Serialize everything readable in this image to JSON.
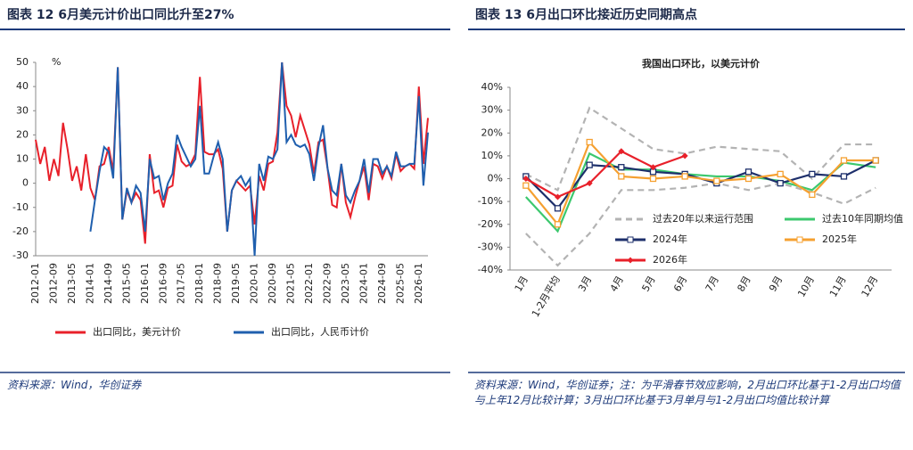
{
  "chart_data": [
    {
      "type": "line",
      "title": "图表 12 6月美元计价出口同比升至27%",
      "unit": "%",
      "source": "资料来源：Wind，华创证券",
      "categories": [
        "2012-01",
        null,
        null,
        null,
        "2012-09",
        null,
        null,
        null,
        "2013-05",
        null,
        null,
        null,
        "2014-01",
        null,
        null,
        null,
        "2014-09",
        null,
        null,
        null,
        "2015-05",
        null,
        null,
        null,
        "2016-01",
        null,
        null,
        null,
        "2016-09",
        null,
        null,
        null,
        "2017-05",
        null,
        null,
        null,
        "2018-01",
        null,
        null,
        null,
        "2018-09",
        null,
        null,
        null,
        "2019-05",
        null,
        null,
        null,
        "2020-01",
        null,
        null,
        null,
        "2020-09",
        null,
        null,
        null,
        "2021-05",
        null,
        null,
        null,
        "2022-01",
        null,
        null,
        null,
        "2022-09",
        null,
        null,
        null,
        "2023-05",
        null,
        null,
        null,
        "2024-01",
        null,
        null,
        null,
        "2024-09",
        null,
        null,
        null,
        "2025-05",
        null,
        null,
        null,
        "2026-01",
        null,
        null
      ],
      "ylim": [
        -30,
        50
      ],
      "yticks": [
        -30,
        -20,
        -10,
        0,
        10,
        20,
        30,
        40,
        50
      ],
      "series": [
        {
          "name": "出口同比，美元计价",
          "color": "#e8202a",
          "values": [
            18,
            8,
            15,
            1,
            10,
            3,
            25,
            14,
            1,
            7,
            -3,
            12,
            -2,
            -7,
            7,
            8,
            15,
            5,
            48,
            -15,
            -3,
            -8,
            -4,
            -7,
            -25,
            12,
            -4,
            -3,
            -10,
            -2,
            -1,
            16,
            9,
            7,
            8,
            12,
            44,
            13,
            12,
            12,
            14,
            6,
            -20,
            -3,
            1,
            -1,
            -3,
            -1,
            -17,
            3,
            -3,
            8,
            9,
            21,
            50,
            32,
            28,
            19,
            28,
            22,
            16,
            4,
            17,
            18,
            6,
            -9,
            -10,
            8,
            -8,
            -14,
            -6,
            1,
            7,
            -7,
            8,
            7,
            2,
            7,
            2,
            12,
            5,
            7,
            8,
            6,
            40,
            8,
            27
          ]
        },
        {
          "name": "出口同比，人民币计价",
          "color": "#1f5fae",
          "values": [
            null,
            null,
            null,
            null,
            null,
            null,
            null,
            null,
            null,
            null,
            null,
            null,
            -20,
            -7,
            5,
            15,
            13,
            2,
            48,
            -15,
            -2,
            -8,
            -1,
            -4,
            -20,
            10,
            2,
            3,
            -7,
            0,
            4,
            20,
            15,
            11,
            7,
            10,
            32,
            4,
            4,
            11,
            17,
            10,
            -20,
            -3,
            1,
            3,
            -1,
            2,
            -30,
            8,
            1,
            11,
            10,
            14,
            50,
            17,
            20,
            16,
            15,
            16,
            12,
            1,
            15,
            24,
            6,
            -3,
            -5,
            8,
            -5,
            -8,
            -3,
            1,
            10,
            -4,
            10,
            10,
            4,
            7,
            3,
            13,
            7,
            7,
            8,
            8,
            36,
            -1,
            21
          ]
        }
      ]
    },
    {
      "type": "line",
      "title": "图表 13 6月出口环比接近历史同期高点",
      "subtitle": "我国出口环比，以美元计价",
      "source": "资料来源：Wind，华创证券；注：为平滑春节效应影响，2月出口环比基于1-2月出口均值与上年12月比较计算；3月出口环比基于3月单月与1-2月出口均值比较计算",
      "categories": [
        "1月",
        "1-2月平均",
        "3月",
        "4月",
        "5月",
        "6月",
        "7月",
        "8月",
        "9月",
        "10月",
        "11月",
        "12月"
      ],
      "ylim": [
        -40,
        40
      ],
      "yticks": [
        {
          "value": -40,
          "label": "-40%"
        },
        {
          "value": -30,
          "label": "-30%"
        },
        {
          "value": -20,
          "label": "-20%"
        },
        {
          "value": -10,
          "label": "-10%"
        },
        {
          "value": 0,
          "label": "0%"
        },
        {
          "value": 10,
          "label": "10%"
        },
        {
          "value": 20,
          "label": "20%"
        },
        {
          "value": 30,
          "label": "30%"
        },
        {
          "value": 40,
          "label": "40%"
        }
      ],
      "series": [
        {
          "name": "过去20年以来运行范围",
          "color": "#b3b3b3",
          "dash": true,
          "upper": [
            2,
            -5,
            31,
            22,
            13,
            11,
            14,
            13,
            12,
            0,
            15,
            15
          ],
          "lower": [
            -24,
            -38,
            -24,
            -5,
            -5,
            -4,
            -2,
            -5,
            -2,
            -6,
            -11,
            -4
          ]
        },
        {
          "name": "过去10年同期均值",
          "color": "#3cc86e",
          "values": [
            -8,
            -23,
            11,
            4,
            4,
            2,
            1,
            1,
            -1,
            -5,
            7,
            5
          ]
        },
        {
          "name": "2024年",
          "color": "#1d2f6b",
          "marker": "square",
          "values": [
            1,
            -13,
            6,
            5,
            3,
            2,
            -2,
            3,
            -2,
            2,
            1,
            8
          ]
        },
        {
          "name": "2025年",
          "color": "#f5a030",
          "marker": "square",
          "values": [
            -3,
            -20,
            16,
            1,
            0,
            1,
            -1,
            0,
            2,
            -7,
            8,
            8
          ]
        },
        {
          "name": "2026年",
          "color": "#e8202a",
          "marker": "diamond",
          "values": [
            0,
            -8,
            -2,
            12,
            5,
            10,
            null,
            null,
            null,
            null,
            null,
            null
          ]
        }
      ]
    }
  ]
}
